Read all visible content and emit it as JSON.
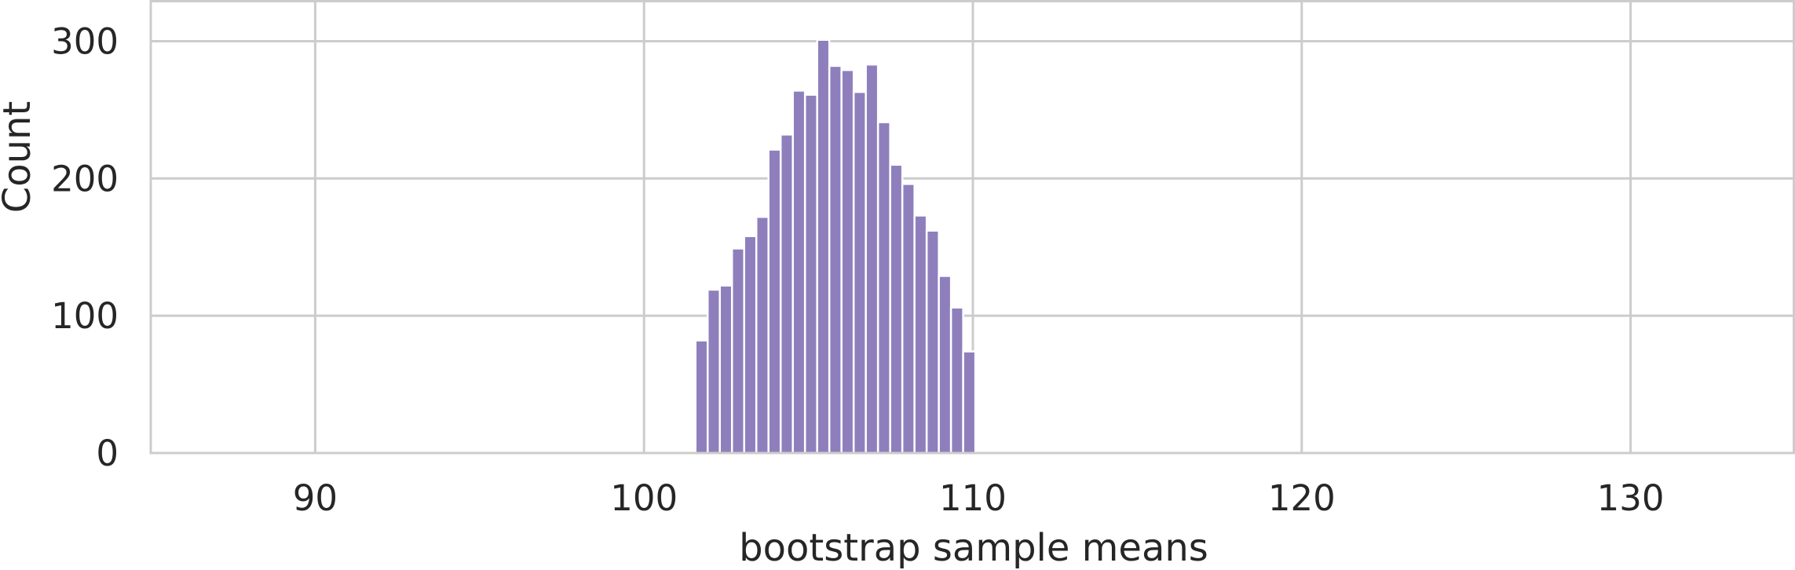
{
  "chart_data": {
    "type": "bar",
    "title": "",
    "xlabel": "bootstrap sample means",
    "ylabel": "Count",
    "xlim": [
      85,
      135
    ],
    "ylim": [
      0,
      330
    ],
    "x_ticks": [
      90,
      100,
      110,
      120,
      130
    ],
    "y_ticks": [
      0,
      100,
      200,
      300
    ],
    "grid": true,
    "bar_color": "#8e7fbc",
    "bin_width": 0.37,
    "x": [
      101.75,
      102.12,
      102.49,
      102.86,
      103.23,
      103.6,
      103.97,
      104.34,
      104.71,
      105.08,
      105.45,
      105.82,
      106.19,
      106.56,
      106.93,
      107.3,
      107.67,
      108.04,
      108.41,
      108.78,
      109.15,
      109.52,
      109.89
    ],
    "values": [
      82,
      119,
      122,
      149,
      158,
      172,
      221,
      232,
      264,
      261,
      301,
      282,
      279,
      263,
      283,
      241,
      210,
      196,
      173,
      162,
      129,
      106,
      74
    ]
  }
}
